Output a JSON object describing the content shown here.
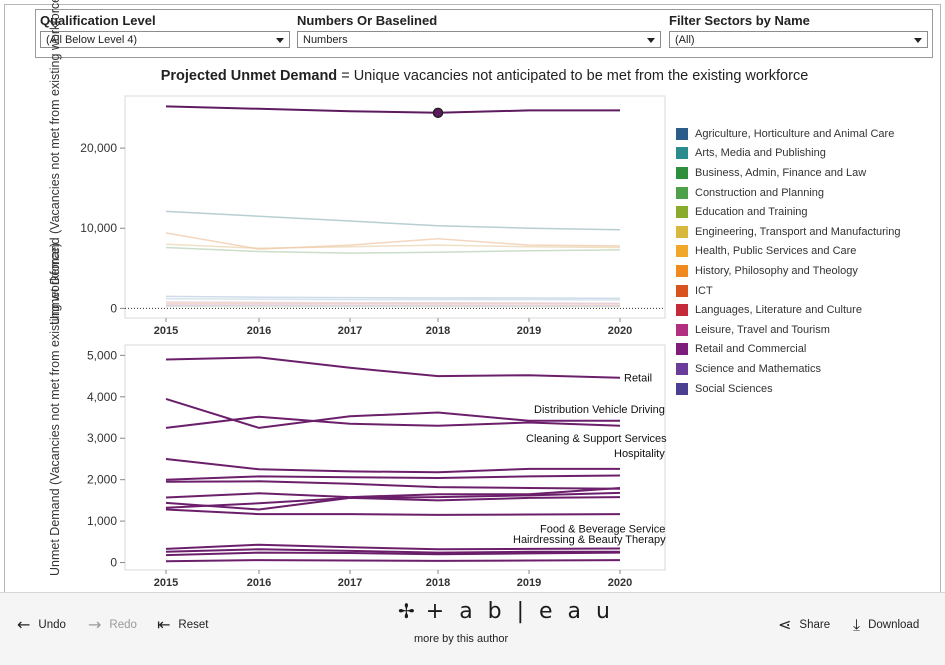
{
  "filters": [
    {
      "label": "Qualification Level",
      "value": "(All Below Level 4)"
    },
    {
      "label": "Numbers Or Baselined",
      "value": "Numbers"
    },
    {
      "label": "Filter Sectors by Name",
      "value": "(All)"
    }
  ],
  "title": {
    "bold": "Projected Unmet Demand",
    "rest": " = Unique vacancies not anticipated to be met from the existing workforce"
  },
  "legend": [
    {
      "label": "Agriculture, Horticulture and Animal Care",
      "color": "#2b5c8a"
    },
    {
      "label": "Arts, Media and Publishing",
      "color": "#2a8c8c"
    },
    {
      "label": "Business, Admin, Finance and Law",
      "color": "#2f8f3c"
    },
    {
      "label": "Construction and Planning",
      "color": "#4fa04a"
    },
    {
      "label": "Education and Training",
      "color": "#8aac2e"
    },
    {
      "label": "Engineering, Transport and Manufacturing",
      "color": "#d9b73c"
    },
    {
      "label": "Health, Public Services and Care",
      "color": "#f0a72a"
    },
    {
      "label": "History, Philosophy and Theology",
      "color": "#ef8a1e"
    },
    {
      "label": "ICT",
      "color": "#d9531e"
    },
    {
      "label": "Languages, Literature and Culture",
      "color": "#c42a3a"
    },
    {
      "label": "Leisure, Travel and Tourism",
      "color": "#b12f7e"
    },
    {
      "label": "Retail and Commercial",
      "color": "#7d1e7d"
    },
    {
      "label": "Science and Mathematics",
      "color": "#6a3d9a"
    },
    {
      "label": "Social Sciences",
      "color": "#4b3f91"
    }
  ],
  "chart_data": [
    {
      "type": "line",
      "ylabel": "Unmet Demand (Vacancies not met from existing workforce)",
      "x": [
        2015,
        2016,
        2017,
        2018,
        2019,
        2020
      ],
      "ylim": [
        -1200,
        26500
      ],
      "yticks": [
        0,
        10000,
        20000
      ],
      "ytick_labels": [
        "0",
        "10,000",
        "20,000"
      ],
      "zero_line": "dotted",
      "highlight": {
        "series": 0,
        "x": 2018
      },
      "series": [
        {
          "values": [
            25200,
            24900,
            24600,
            24400,
            24700,
            24700
          ],
          "color": "#5e1a5e",
          "opacity": 1,
          "width": 2
        },
        {
          "values": [
            12100,
            11500,
            10900,
            10300,
            10000,
            9800
          ],
          "color": "#9fbfc2",
          "opacity": 0.75,
          "width": 1.5
        },
        {
          "values": [
            9400,
            7400,
            7900,
            8700,
            7900,
            7800
          ],
          "color": "#f0c8a8",
          "opacity": 0.75,
          "width": 1.5
        },
        {
          "values": [
            8000,
            7500,
            7700,
            7900,
            7700,
            7600
          ],
          "color": "#e8d5b0",
          "opacity": 0.75,
          "width": 1.5
        },
        {
          "values": [
            7600,
            7100,
            6900,
            7000,
            7200,
            7300
          ],
          "color": "#b9d3b6",
          "opacity": 0.75,
          "width": 1.5
        },
        {
          "values": [
            1500,
            1400,
            1350,
            1300,
            1300,
            1250
          ],
          "color": "#b9cde0",
          "opacity": 0.7,
          "width": 1.5
        },
        {
          "values": [
            1200,
            1150,
            1100,
            1100,
            1100,
            1050
          ],
          "color": "#c7d9e6",
          "opacity": 0.7,
          "width": 1.5
        },
        {
          "values": [
            800,
            750,
            700,
            700,
            680,
            650
          ],
          "color": "#e3c9d6",
          "opacity": 0.7,
          "width": 1.5
        },
        {
          "values": [
            600,
            600,
            580,
            560,
            560,
            540
          ],
          "color": "#f0c9b0",
          "opacity": 0.7,
          "width": 1.5
        },
        {
          "values": [
            400,
            380,
            360,
            360,
            350,
            340
          ],
          "color": "#d8c0e0",
          "opacity": 0.7,
          "width": 1.5
        },
        {
          "values": [
            250,
            240,
            230,
            230,
            220,
            220
          ],
          "color": "#cfe0c6",
          "opacity": 0.7,
          "width": 1.5
        }
      ]
    },
    {
      "type": "line",
      "ylabel": "Unmet Demand (Vacancies not met from existing workforce)",
      "x": [
        2015,
        2016,
        2017,
        2018,
        2019,
        2020
      ],
      "ylim": [
        -180,
        5250
      ],
      "yticks": [
        0,
        1000,
        2000,
        3000,
        4000,
        5000
      ],
      "ytick_labels": [
        "0",
        "1,000",
        "2,000",
        "3,000",
        "4,000",
        "5,000"
      ],
      "color": "#6b1f6b",
      "series": [
        {
          "name": "Retail",
          "values": [
            4900,
            4950,
            4700,
            4500,
            4520,
            4460
          ]
        },
        {
          "name": "Distribution Vehicle Driving",
          "values": [
            3950,
            3250,
            3530,
            3620,
            3420,
            3420
          ]
        },
        {
          "name": "Cleaning & Support Services",
          "values": [
            3250,
            3520,
            3350,
            3300,
            3380,
            3300
          ]
        },
        {
          "name": "Hospitality",
          "values": [
            2500,
            2250,
            2200,
            2180,
            2260,
            2260
          ]
        },
        {
          "values": [
            2000,
            2080,
            2060,
            2040,
            2080,
            2100
          ]
        },
        {
          "values": [
            1950,
            1960,
            1900,
            1820,
            1800,
            1780
          ]
        },
        {
          "values": [
            1570,
            1670,
            1580,
            1650,
            1650,
            1800
          ]
        },
        {
          "values": [
            1440,
            1280,
            1560,
            1580,
            1620,
            1680
          ]
        },
        {
          "values": [
            1320,
            1430,
            1560,
            1500,
            1560,
            1580
          ]
        },
        {
          "values": [
            1280,
            1170,
            1170,
            1150,
            1160,
            1170
          ]
        },
        {
          "name": "Food & Beverage Service",
          "values": [
            330,
            430,
            370,
            320,
            330,
            340
          ]
        },
        {
          "name": "Hairdressing & Beauty Therapy",
          "values": [
            260,
            320,
            280,
            240,
            260,
            260
          ]
        },
        {
          "values": [
            180,
            240,
            230,
            200,
            220,
            240
          ]
        },
        {
          "values": [
            30,
            60,
            50,
            40,
            50,
            60
          ]
        }
      ]
    }
  ],
  "footer": {
    "undo": "Undo",
    "redo": "Redo",
    "reset": "Reset",
    "logo": "+ a b | e a u",
    "more": "more by this author",
    "share": "Share",
    "download": "Download"
  }
}
